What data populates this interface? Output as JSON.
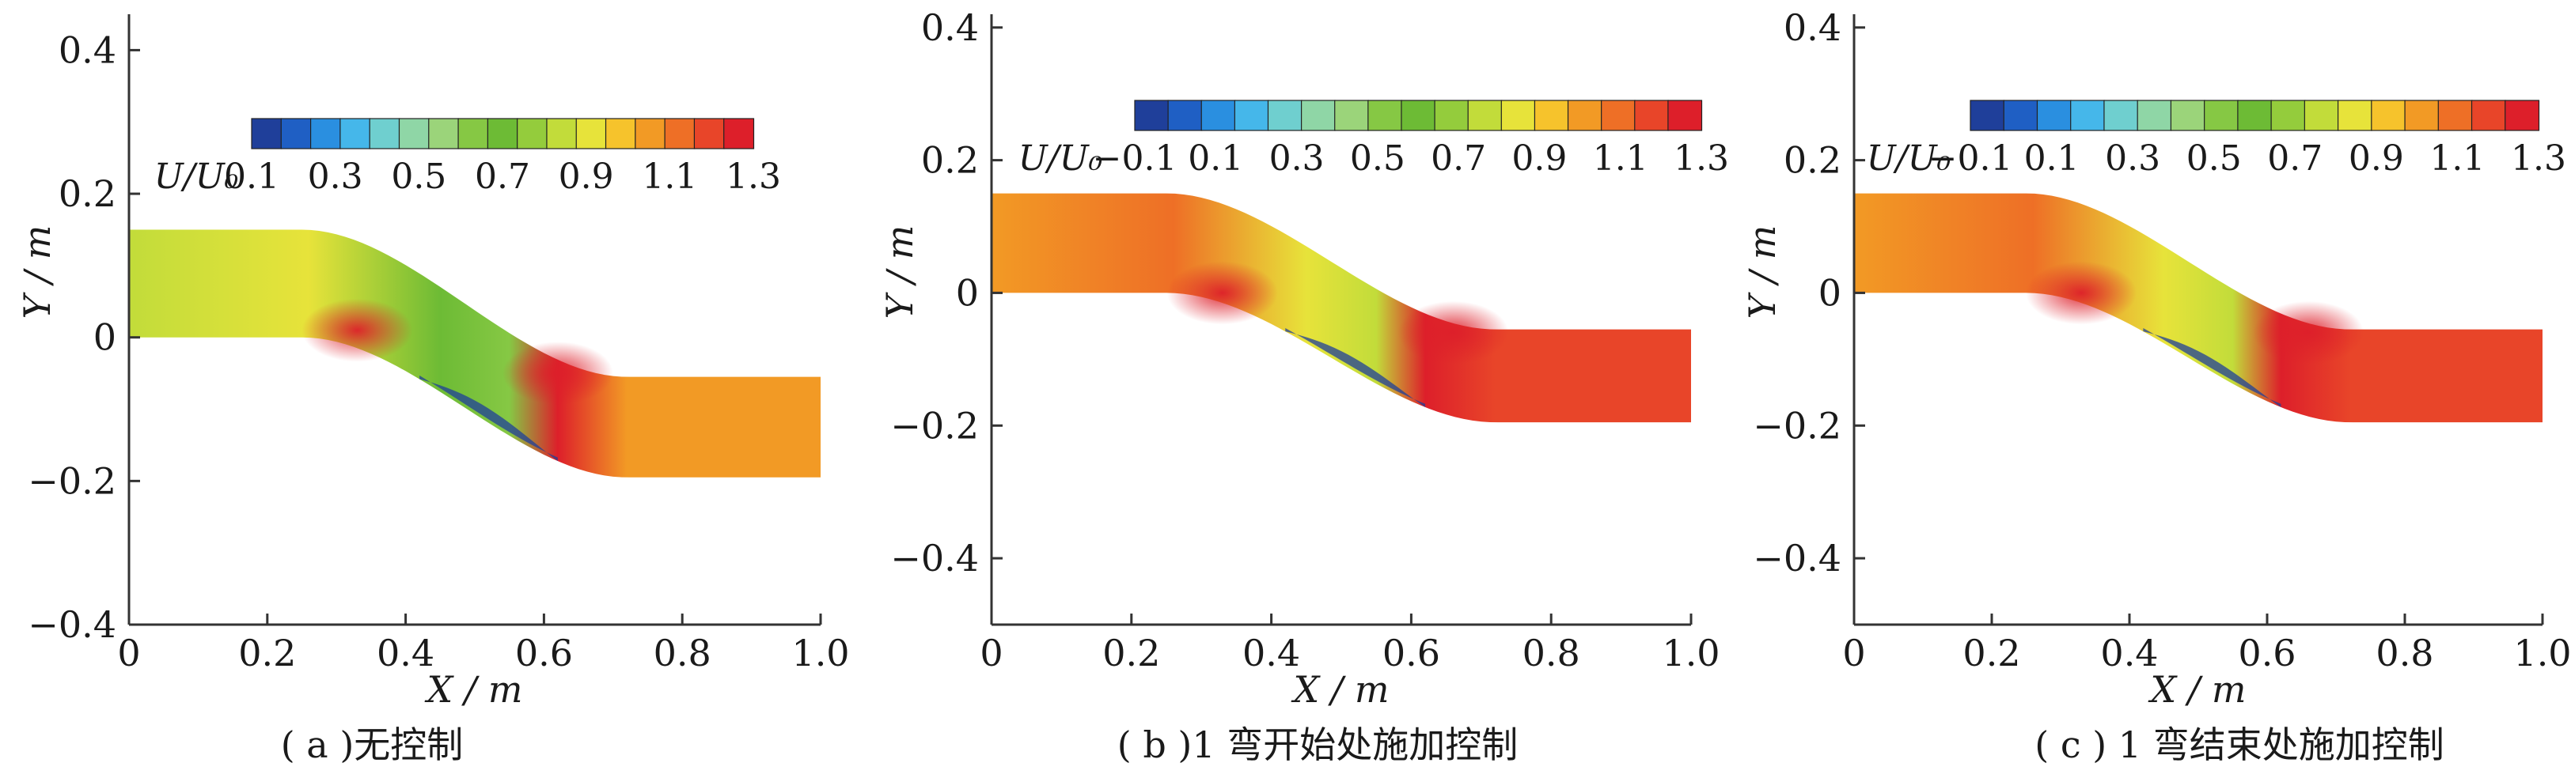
{
  "figure": {
    "palette": [
      "#1f3f9a",
      "#1f5fc4",
      "#2a8fe0",
      "#45b7ea",
      "#6fcfcf",
      "#8fd6a6",
      "#9bd47a",
      "#86c844",
      "#6dbb35",
      "#94cc3c",
      "#c2dc3a",
      "#e7e33a",
      "#f6c32c",
      "#f29a25",
      "#ee6f26",
      "#e84529",
      "#dd1f2a"
    ]
  },
  "chart_data": [
    {
      "type": "heatmap",
      "panel": "a",
      "caption": "( a )无控制",
      "xlabel": "X / m",
      "ylabel": "Y / m",
      "xlim": [
        0,
        1.0
      ],
      "ylim": [
        -0.4,
        0.45
      ],
      "xticks": [
        "0",
        "0.2",
        "0.4",
        "0.6",
        "0.8",
        "1.0"
      ],
      "yticks": [
        "-0.4",
        "-0.2",
        "0",
        "0.2",
        "0.4"
      ],
      "colorbar": {
        "label": "U/U₀",
        "ticks": [
          "0.1",
          "0.3",
          "0.5",
          "0.7",
          "0.9",
          "1.1",
          "1.3"
        ],
        "range": [
          0.1,
          1.3
        ]
      },
      "field": {
        "inlet_value": 0.85,
        "outlet_value": 1.05,
        "peak_value": 1.3,
        "peak_locations": [
          [
            0.33,
            0.01
          ],
          [
            0.62,
            -0.05
          ]
        ],
        "min_value": 0.1
      }
    },
    {
      "type": "heatmap",
      "panel": "b",
      "caption": "( b )1 弯开始处施加控制",
      "xlabel": "X / m",
      "ylabel": "Y / m",
      "xlim": [
        0,
        1.0
      ],
      "ylim": [
        -0.5,
        0.42
      ],
      "xticks": [
        "0",
        "0.2",
        "0.4",
        "0.6",
        "0.8",
        "1.0"
      ],
      "yticks": [
        "-0.4",
        "-0.2",
        "0",
        "0.2",
        "0.4"
      ],
      "colorbar": {
        "label": "U/U₀",
        "ticks": [
          "-0.1",
          "0.1",
          "0.3",
          "0.5",
          "0.7",
          "0.9",
          "1.1",
          "1.3"
        ],
        "range": [
          -0.1,
          1.3
        ]
      },
      "field": {
        "inlet_value": 1.05,
        "outlet_value": 1.2,
        "peak_value": 1.3,
        "peak_locations": [
          [
            0.33,
            0.0
          ],
          [
            0.66,
            -0.06
          ]
        ],
        "min_value": -0.1
      }
    },
    {
      "type": "heatmap",
      "panel": "c",
      "caption": "( c ) 1 弯结束处施加控制",
      "xlabel": "X / m",
      "ylabel": "Y / m",
      "xlim": [
        0,
        1.0
      ],
      "ylim": [
        -0.5,
        0.42
      ],
      "xticks": [
        "0",
        "0.2",
        "0.4",
        "0.6",
        "0.8",
        "1.0"
      ],
      "yticks": [
        "-0.4",
        "-0.2",
        "0",
        "0.2",
        "0.4"
      ],
      "colorbar": {
        "label": "U/U₀",
        "ticks": [
          "-0.1",
          "0.1",
          "0.3",
          "0.5",
          "0.7",
          "0.9",
          "1.1",
          "1.3"
        ],
        "range": [
          -0.1,
          1.3
        ]
      },
      "field": {
        "inlet_value": 1.05,
        "outlet_value": 1.2,
        "peak_value": 1.3,
        "peak_locations": [
          [
            0.33,
            0.0
          ],
          [
            0.66,
            -0.06
          ]
        ],
        "min_value": -0.1
      }
    }
  ]
}
